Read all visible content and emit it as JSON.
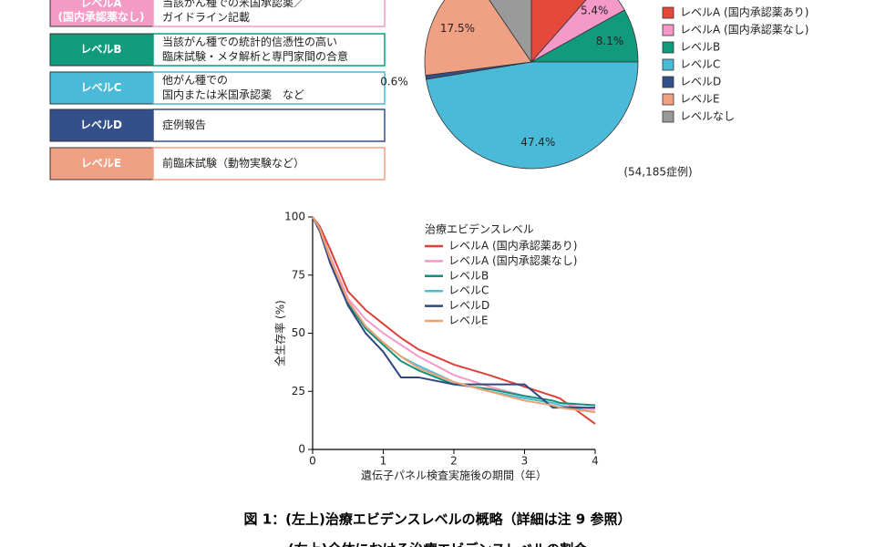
{
  "levels": [
    {
      "label": [
        "レベルA",
        "(国内承認薬なし)"
      ],
      "description": [
        "当該がん種での米国承認薬／",
        "ガイドライン記載"
      ],
      "color": "#f39ac5"
    },
    {
      "label": [
        "レベルB"
      ],
      "description": [
        "当該がん種での統計的信憑性の高い",
        "臨床試験・メタ解析と専門家間の合意"
      ],
      "color": "#119a7c"
    },
    {
      "label": [
        "レベルC"
      ],
      "description": [
        "他がん種での",
        "国内または米国承認薬　など"
      ],
      "color": "#4bb9d8"
    },
    {
      "label": [
        "レベルD"
      ],
      "description": [
        "症例報告"
      ],
      "color": "#34508a"
    },
    {
      "label": [
        "レベルE"
      ],
      "description": [
        "前臨床試験（動物実験など）"
      ],
      "color": "#f0a184"
    }
  ],
  "chart_data": [
    {
      "type": "pie",
      "categories": [
        "レベルA (国内承認薬あり)",
        "レベルA (国内承認薬なし)",
        "レベルB",
        "レベルC",
        "レベルD",
        "レベルE",
        "レベルなし"
      ],
      "values": [
        11.5,
        5.4,
        8.1,
        47.4,
        0.6,
        17.5,
        9.5
      ],
      "value_labels": [
        null,
        "5.4%",
        "8.1%",
        "47.4%",
        "0.6%",
        "17.5%",
        null
      ],
      "colors": [
        "#e5493c",
        "#f59ac8",
        "#119a7c",
        "#4bb9d8",
        "#34508a",
        "#f0a184",
        "#9a9a9a"
      ],
      "annotation": "(54,185症例)"
    },
    {
      "type": "line",
      "x": [
        0,
        0.1,
        0.25,
        0.5,
        0.75,
        1,
        1.25,
        1.5,
        2,
        2.5,
        3,
        3.4,
        3.5,
        4
      ],
      "series": [
        {
          "name": "レベルA (国内承認薬あり)",
          "color": "#e0403a",
          "values": [
            100,
            96,
            86,
            68,
            60,
            54,
            48,
            43,
            36.5,
            32,
            27,
            23,
            22,
            11
          ]
        },
        {
          "name": "レベルA (国内承認薬なし)",
          "color": "#f59ac8",
          "values": [
            100,
            95,
            83,
            65,
            56,
            50,
            45,
            40,
            32,
            27,
            23,
            21,
            20,
            17
          ]
        },
        {
          "name": "レベルB",
          "color": "#0e9279",
          "values": [
            100,
            94,
            81,
            63,
            52,
            45,
            38,
            34,
            28,
            26,
            23,
            21,
            20,
            19
          ]
        },
        {
          "name": "レベルC",
          "color": "#4cbcd8",
          "values": [
            100,
            95,
            82,
            64,
            53,
            46,
            40,
            36,
            29,
            25,
            22,
            20,
            19,
            16
          ]
        },
        {
          "name": "レベルD",
          "color": "#33457f",
          "values": [
            100,
            94,
            80,
            62,
            50,
            42,
            31,
            31,
            28,
            28,
            28,
            18,
            18,
            18
          ]
        },
        {
          "name": "レベルE",
          "color": "#f0a070",
          "values": [
            100,
            95,
            82,
            64,
            53,
            46,
            40,
            35,
            29,
            25,
            21,
            19,
            18,
            16
          ]
        }
      ],
      "legend_title": "治療エビデンスレベル",
      "x_label": "遺伝子パネル検査実施後の期間（年）",
      "y_label": "全生存率 (%)",
      "xlim": [
        0,
        4
      ],
      "ylim": [
        0,
        100
      ],
      "xticks": [
        0,
        1,
        2,
        3,
        4
      ],
      "yticks": [
        0,
        25,
        50,
        75,
        100
      ]
    }
  ],
  "caption": [
    "図 1：(左上)治療エビデンスレベルの概略（詳細は注 9 参照）",
    "(右上)全体における治療エビデンスレベルの割合"
  ]
}
